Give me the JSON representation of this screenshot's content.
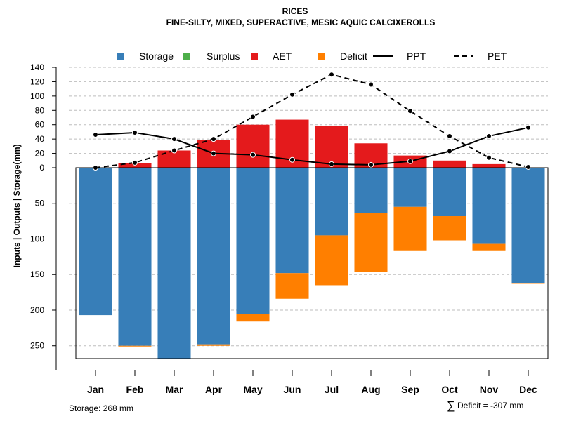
{
  "chart_data": {
    "type": "bar",
    "title": "RICES",
    "subtitle": "FINE-SILTY, MIXED, SUPERACTIVE, MESIC AQUIC CALCIXEROLLS",
    "ylabel_left": "Inputs | Outputs | Storage",
    "ylabel_right": "(mm)",
    "categories": [
      "Jan",
      "Feb",
      "Mar",
      "Apr",
      "May",
      "Jun",
      "Jul",
      "Aug",
      "Sep",
      "Oct",
      "Nov",
      "Dec"
    ],
    "yticks_upper": [
      "140",
      "120",
      "100",
      "80",
      "60",
      "40",
      "20",
      "0"
    ],
    "yticks_lower": [
      "50",
      "100",
      "150",
      "200",
      "250"
    ],
    "ylim_upper": [
      0,
      140
    ],
    "ylim_lower": [
      0,
      268
    ],
    "legend": {
      "position": "top",
      "items": [
        {
          "label": "Storage",
          "kind": "square",
          "color": "#377EB8"
        },
        {
          "label": "Surplus",
          "kind": "square",
          "color": "#4DAF4A"
        },
        {
          "label": "AET",
          "kind": "square",
          "color": "#E41A1C"
        },
        {
          "label": "Deficit",
          "kind": "square",
          "color": "#FF7F00"
        },
        {
          "label": "PPT",
          "kind": "solid-line",
          "color": "#000000"
        },
        {
          "label": "PET",
          "kind": "dashed-line",
          "color": "#000000"
        }
      ]
    },
    "colors": {
      "storage": "#377EB8",
      "surplus": "#4DAF4A",
      "aet": "#E41A1C",
      "deficit": "#FF7F00",
      "line": "#000000"
    },
    "series": [
      {
        "name": "AET",
        "values": [
          0,
          6,
          24,
          39,
          60,
          67,
          58,
          34,
          17,
          10,
          5,
          0
        ]
      },
      {
        "name": "Surplus",
        "values": [
          0,
          0,
          0,
          0,
          0,
          0,
          0,
          0,
          0,
          0,
          0,
          0
        ]
      },
      {
        "name": "Storage",
        "values": [
          207,
          250,
          268,
          248,
          205,
          148,
          95,
          64,
          55,
          68,
          107,
          162
        ]
      },
      {
        "name": "Deficit",
        "values": [
          0,
          1,
          1,
          2,
          11,
          36,
          70,
          82,
          62,
          34,
          10,
          1
        ]
      },
      {
        "name": "PPT",
        "values": [
          46,
          49,
          40,
          20,
          18,
          11,
          5,
          4,
          9,
          23,
          44,
          56
        ]
      },
      {
        "name": "PET",
        "values": [
          0,
          7,
          24,
          40,
          71,
          102,
          130,
          116,
          79,
          44,
          14,
          1
        ]
      }
    ],
    "footer": {
      "storage_text": "Storage: 268 mm",
      "deficit_symbol": "∑",
      "deficit_text": "Deficit = -307 mm"
    }
  }
}
